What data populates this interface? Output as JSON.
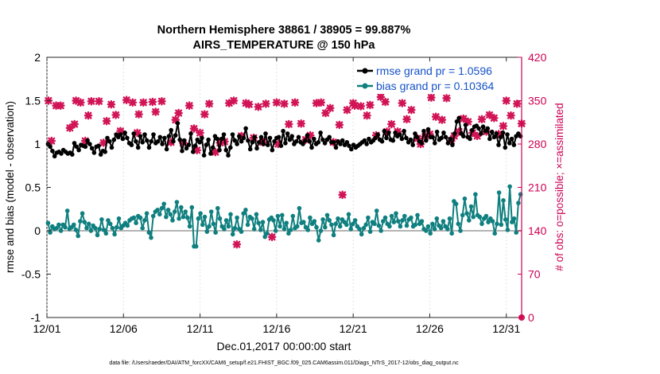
{
  "chart_data": {
    "type": "line",
    "title": [
      "Northern Hemisphere 38861 / 38905 = 99.887%",
      "AIRS_TEMPERATURE @ 150 hPa"
    ],
    "xlabel": "Dec.01,2017 00:00:00 start",
    "ylabel": "rmse and bias (model - observation)",
    "ylabel_right": "# of obs: o=possible; ×=assimilated",
    "footnote": "data file: /Users/raeder/DAI/ATM_forcXX/CAM6_setup/f.e21.FHIST_BGC.f09_025.CAM6assim.011/Diags_NTrS_2017-12/obs_diag_output.nc",
    "xlim": [
      1,
      32
    ],
    "ylim": [
      -1,
      2
    ],
    "ylim_right": [
      0,
      420
    ],
    "x_ticks": [
      1,
      6,
      11,
      16,
      21,
      26,
      31
    ],
    "x_tick_labels": [
      "12/01",
      "12/06",
      "12/11",
      "12/16",
      "12/21",
      "12/26",
      "12/31"
    ],
    "y_ticks": [
      -1,
      -0.5,
      0,
      0.5,
      1,
      1.5,
      2
    ],
    "y_tick_labels": [
      "-1",
      "-0.5",
      "0",
      "0.5",
      "1",
      "1.5",
      "2"
    ],
    "y_right_ticks": [
      0,
      70,
      140,
      210,
      280,
      350,
      420
    ],
    "y_right_tick_labels": [
      "0",
      "70",
      "140",
      "210",
      "280",
      "350",
      "420"
    ],
    "legend": {
      "location": "top-right",
      "entries": [
        "rmse grand pr = 1.0596",
        "bias grand pr = 0.10364"
      ]
    },
    "colors": {
      "rmse": "#000000",
      "bias": "#0f7f7f",
      "obs": "#d11456",
      "zero_line": "#b4b4b4"
    },
    "series": [
      {
        "name": "rmse",
        "values": [
          1.0,
          0.97,
          0.92,
          0.86,
          0.9,
          0.91,
          0.89,
          0.93,
          0.91,
          0.89,
          0.9,
          0.88,
          1.01,
          0.97,
          0.93,
          0.99,
          0.98,
          0.97,
          1.04,
          1.0,
          0.95,
          0.9,
          0.97,
          0.98,
          0.88,
          0.92,
          0.91,
          1.07,
          1.03,
          0.96,
          1.05,
          1.11,
          1.08,
          1.11,
          1.06,
          1.13,
          1.07,
          1.01,
          0.99,
          1.12,
          1.03,
          0.96,
          1.09,
          1.02,
          1.11,
          1.04,
          0.96,
          1.03,
          1.11,
          1.01,
          1.03,
          1.08,
          1.0,
          1.07,
          0.94,
          1.09,
          1.16,
          1.03,
          1.1,
          1.24,
          1.05,
          0.92,
          1.04,
          0.95,
          0.99,
          1.12,
          0.91,
          0.98,
          1.05,
          1.02,
          1.07,
          0.87,
          0.99,
          1.05,
          0.89,
          0.96,
          1.09,
          1.06,
          0.93,
          1.06,
          1.11,
          0.93,
          0.87,
          0.96,
          1.11,
          1.04,
          1.0,
          1.09,
          1.03,
          1.07,
          1.18,
          1.04,
          0.94,
          1.02,
          1.08,
          0.95,
          1.02,
          1.08,
          1.0,
          1.12,
          0.99,
          1.07,
          0.93,
          1.03,
          1.07,
          1.08,
          0.98,
          1.15,
          1.01,
          1.12,
          1.05,
          1.09,
          1.0,
          1.03,
          1.08,
          1.02,
          1.0,
          1.04,
          1.1,
          1.03,
          0.96,
          1.06,
          1.0,
          1.02,
          1.13,
          1.05,
          1.01,
          1.05,
          1.08,
          1.02,
          1.02,
          0.96,
          1.03,
          1.0,
          1.04,
          0.99,
          1.02,
          0.98,
          0.94,
          0.99,
          0.96,
          0.98,
          1.0,
          1.02,
          1.04,
          1.0,
          1.06,
          1.02,
          1.04,
          1.07,
          1.11,
          1.05,
          1.03,
          1.15,
          1.07,
          1.13,
          1.05,
          1.04,
          1.13,
          1.09,
          1.11,
          1.06,
          1.15,
          1.07,
          1.02,
          1.05,
          0.99,
          1.12,
          1.08,
          1.03,
          1.01,
          1.15,
          1.04,
          1.17,
          1.08,
          1.08,
          1.01,
          1.14,
          1.05,
          1.07,
          1.13,
          1.08,
          1.01,
          1.06,
          0.99,
          1.12,
          1.26,
          1.3,
          1.12,
          1.09,
          1.22,
          1.08,
          1.06,
          1.16,
          1.2,
          1.21,
          1.18,
          1.12,
          1.2,
          1.15,
          1.18,
          1.06,
          1.14,
          1.08,
          1.12,
          0.99,
          1.08,
          1.13,
          0.96,
          1.11,
          1.01,
          1.06,
          0.99,
          1.09,
          1.12,
          1.09
        ]
      },
      {
        "name": "bias",
        "values": [
          0.09,
          -0.02,
          0.05,
          0.02,
          0.03,
          0.07,
          0.0,
          0.07,
          0.04,
          0.23,
          0.02,
          0.04,
          0.07,
          0.01,
          -0.06,
          0.11,
          0.2,
          0.1,
          0.03,
          0.08,
          0.0,
          0.06,
          0.03,
          -0.05,
          0.02,
          0.13,
          0.01,
          -0.03,
          0.12,
          0.08,
          0.03,
          -0.04,
          0.04,
          0.14,
          0.03,
          0.06,
          0.09,
          0.06,
          0.12,
          0.14,
          0.15,
          0.09,
          0.17,
          0.15,
          0.03,
          0.12,
          0.2,
          -0.02,
          -0.08,
          0.17,
          0.22,
          0.24,
          0.19,
          0.26,
          0.31,
          0.16,
          0.24,
          0.19,
          0.12,
          0.22,
          0.33,
          0.14,
          0.27,
          0.16,
          0.22,
          0.15,
          0.05,
          0.27,
          -0.18,
          -0.18,
          0.14,
          0.2,
          0.07,
          0.16,
          -0.01,
          0.05,
          0.22,
          0.08,
          -0.02,
          0.26,
          0.14,
          0.05,
          0.02,
          0.12,
          0.05,
          0.19,
          -0.04,
          0.03,
          0.15,
          0.02,
          -0.01,
          0.2,
          0.24,
          0.07,
          0.16,
          0.14,
          0.02,
          0.19,
          0.09,
          0.01,
          0.1,
          -0.07,
          -0.03,
          0.13,
          0.15,
          0.12,
          0.0,
          0.17,
          0.05,
          0.18,
          0.02,
          0.09,
          -0.03,
          0.01,
          0.17,
          0.03,
          0.05,
          0.26,
          0.09,
          0.1,
          0.04,
          0.01,
          0.15,
          0.08,
          0.11,
          0.04,
          -0.11,
          0.0,
          0.13,
          0.04,
          0.18,
          0.12,
          0.07,
          -0.05,
          0.08,
          0.14,
          0.05,
          0.13,
          0.1,
          0.07,
          0.19,
          0.02,
          0.08,
          0.12,
          0.05,
          0.02,
          -0.04,
          0.03,
          0.07,
          0.15,
          -0.01,
          0.1,
          0.08,
          0.23,
          0.06,
          0.0,
          0.11,
          0.15,
          0.08,
          0.05,
          0.17,
          0.1,
          0.2,
          0.11,
          0.05,
          0.12,
          0.17,
          0.06,
          0.13,
          0.15,
          0.05,
          0.07,
          0.18,
          0.08,
          0.11,
          0.02,
          0.0,
          0.05,
          -0.03,
          0.08,
          0.02,
          0.14,
          0.06,
          0.03,
          0.11,
          0.05,
          0.02,
          0.14,
          -0.03,
          0.34,
          0.31,
          0.08,
          0.0,
          0.18,
          0.37,
          0.2,
          0.12,
          0.28,
          0.16,
          0.42,
          0.18,
          0.16,
          0.08,
          0.14,
          0.17,
          0.1,
          0.14,
          0.11,
          -0.03,
          0.08,
          0.44,
          0.07,
          0.35,
          0.13,
          0.01,
          0.51,
          0.1,
          0.14,
          -0.02,
          0.32,
          0.42
        ]
      },
      {
        "name": "obs possible (o)",
        "axis": "right",
        "values": [
          288,
          286,
          348,
          345,
          345,
          332,
          338,
          322,
          346,
          320,
          300,
          298,
          333,
          348,
          335,
          340,
          334,
          332,
          295,
          321,
          350,
          339,
          326,
          330,
          312,
          338,
          322,
          322,
          315,
          330,
          333,
          350,
          349,
          307,
          328,
          340,
          335,
          329,
          334,
          340,
          346,
          333,
          320,
          349,
          345,
          340,
          333,
          348,
          318,
          330,
          330,
          318,
          342,
          350,
          333,
          326,
          320,
          326,
          318,
          345,
          340,
          342,
          336,
          298,
          310,
          345,
          340,
          339,
          315,
          344,
          330,
          325,
          341,
          346,
          335,
          313,
          350,
          323,
          320,
          335,
          314,
          340,
          338,
          336,
          341,
          330,
          345,
          322,
          340,
          340,
          300,
          348,
          336,
          349,
          341,
          320,
          330,
          345,
          336,
          334,
          343,
          326,
          320,
          323,
          318,
          350,
          320,
          339,
          315,
          340,
          347,
          330,
          323,
          335,
          336,
          339,
          320,
          341,
          330,
          349,
          335,
          338,
          340,
          350,
          330,
          318,
          348,
          335,
          355,
          339,
          333,
          336,
          341,
          330,
          347,
          316,
          322,
          330,
          348,
          330,
          345,
          320,
          350,
          326,
          340,
          356,
          332,
          336,
          326,
          340,
          348,
          333,
          318,
          339,
          330,
          349,
          352,
          318,
          340,
          330,
          320,
          338,
          346,
          330,
          322,
          334,
          350,
          340,
          317,
          331,
          349,
          329,
          343,
          345,
          341,
          325,
          330,
          340,
          345,
          337,
          330,
          349,
          355,
          328,
          320,
          338,
          345,
          330,
          319,
          342,
          336,
          317,
          340,
          343,
          350,
          330,
          339,
          328,
          345,
          318,
          333,
          340,
          332,
          310,
          345,
          341,
          330,
          347,
          350,
          316,
          349,
          345,
          338,
          322,
          339,
          346,
          340,
          348,
          323,
          350,
          315
        ]
      },
      {
        "name": "obs assimilated (×)",
        "axis": "right",
        "values": [
          282,
          281,
          345,
          344,
          343,
          329,
          335,
          319,
          343,
          317,
          297,
          295,
          331,
          345,
          332,
          337,
          331,
          329,
          292,
          318,
          347,
          336,
          323,
          327,
          309,
          335,
          319,
          319,
          312,
          327,
          330,
          347,
          346,
          304,
          325,
          337,
          332,
          326,
          331,
          337,
          343,
          330,
          317,
          346,
          342,
          337,
          330,
          345,
          315,
          327,
          327,
          315,
          339,
          347,
          330,
          323,
          317,
          323,
          315,
          342,
          337,
          339,
          333,
          295,
          307,
          342,
          337,
          336,
          312,
          341,
          327,
          322,
          338,
          343,
          332,
          310,
          347,
          320,
          317,
          332,
          311,
          337,
          335,
          333,
          338,
          327,
          342,
          319,
          337,
          337,
          297,
          345,
          333,
          346,
          338,
          317,
          327,
          342,
          333,
          331,
          340,
          323,
          317,
          320,
          315,
          347,
          317,
          336,
          312,
          337,
          344,
          327,
          320,
          332,
          333,
          336,
          317,
          338,
          327,
          346,
          332,
          335,
          337,
          347,
          327,
          315,
          345,
          332,
          352,
          336,
          330,
          333,
          338,
          327,
          344,
          313,
          319,
          327,
          345,
          327,
          342,
          317,
          347,
          323,
          337,
          353,
          329,
          333,
          323,
          337,
          345,
          330,
          315,
          336,
          327,
          346,
          349,
          315,
          337,
          327,
          317,
          335,
          343,
          327,
          319,
          331,
          347,
          337,
          314,
          328,
          346,
          326,
          340,
          342,
          338,
          322,
          327,
          337,
          342,
          334,
          327,
          346,
          352,
          325,
          317,
          335,
          342,
          327,
          316,
          339,
          333,
          314,
          337,
          340,
          347,
          327,
          336,
          325,
          342,
          315,
          330,
          337,
          329,
          307,
          342,
          338,
          327,
          344,
          347,
          313,
          346,
          342,
          335,
          319,
          336,
          343,
          337,
          345,
          320,
          347,
          312
        ]
      }
    ],
    "obs_scatter_points": [
      [
        1.1,
        350
      ],
      [
        1.3,
        285
      ],
      [
        1.6,
        342
      ],
      [
        1.9,
        342
      ],
      [
        2.5,
        306
      ],
      [
        2.8,
        312
      ],
      [
        2.9,
        350
      ],
      [
        3.2,
        347
      ],
      [
        3.5,
        285
      ],
      [
        3.7,
        326
      ],
      [
        3.9,
        349
      ],
      [
        4.4,
        349
      ],
      [
        4.7,
        282
      ],
      [
        4.9,
        317
      ],
      [
        5.2,
        344
      ],
      [
        5.5,
        327
      ],
      [
        5.8,
        301
      ],
      [
        6.2,
        351
      ],
      [
        6.6,
        347
      ],
      [
        6.9,
        298
      ],
      [
        7.0,
        328
      ],
      [
        7.3,
        347
      ],
      [
        7.9,
        348
      ],
      [
        8.1,
        332
      ],
      [
        8.5,
        349
      ],
      [
        9.1,
        283
      ],
      [
        9.4,
        319
      ],
      [
        9.6,
        330
      ],
      [
        9.9,
        282
      ],
      [
        10.3,
        342
      ],
      [
        10.6,
        305
      ],
      [
        10.8,
        270
      ],
      [
        11.0,
        298
      ],
      [
        11.3,
        328
      ],
      [
        11.6,
        345
      ],
      [
        12.0,
        267
      ],
      [
        12.3,
        282
      ],
      [
        12.6,
        284
      ],
      [
        12.9,
        346
      ],
      [
        13.2,
        350
      ],
      [
        13.4,
        118
      ],
      [
        13.7,
        293
      ],
      [
        14.0,
        346
      ],
      [
        14.2,
        344
      ],
      [
        14.5,
        290
      ],
      [
        14.8,
        340
      ],
      [
        15.1,
        283
      ],
      [
        15.3,
        345
      ],
      [
        15.7,
        130
      ],
      [
        16.0,
        347
      ],
      [
        16.1,
        280
      ],
      [
        16.5,
        345
      ],
      [
        16.8,
        312
      ],
      [
        17.2,
        347
      ],
      [
        17.6,
        313
      ],
      [
        17.9,
        287
      ],
      [
        18.2,
        294
      ],
      [
        18.6,
        346
      ],
      [
        18.9,
        347
      ],
      [
        19.2,
        330
      ],
      [
        19.5,
        338
      ],
      [
        19.7,
        283
      ],
      [
        20.1,
        311
      ],
      [
        20.3,
        198
      ],
      [
        20.6,
        335
      ],
      [
        21.0,
        346
      ],
      [
        21.1,
        342
      ],
      [
        21.5,
        341
      ],
      [
        21.9,
        326
      ],
      [
        22.1,
        343
      ],
      [
        22.5,
        294
      ],
      [
        22.8,
        356
      ],
      [
        23.1,
        348
      ],
      [
        23.2,
        300
      ],
      [
        23.5,
        312
      ],
      [
        23.9,
        300
      ],
      [
        24.2,
        346
      ],
      [
        24.5,
        320
      ],
      [
        24.8,
        335
      ],
      [
        25.2,
        289
      ],
      [
        25.4,
        280
      ],
      [
        25.7,
        292
      ],
      [
        26.0,
        296
      ],
      [
        26.1,
        355
      ],
      [
        26.4,
        324
      ],
      [
        26.8,
        319
      ],
      [
        27.1,
        354
      ],
      [
        27.4,
        285
      ],
      [
        27.6,
        293
      ],
      [
        27.9,
        300
      ],
      [
        28.2,
        321
      ],
      [
        28.5,
        316
      ],
      [
        28.8,
        298
      ],
      [
        29.1,
        293
      ],
      [
        29.4,
        320
      ],
      [
        29.7,
        300
      ],
      [
        29.9,
        327
      ],
      [
        30.2,
        322
      ],
      [
        30.5,
        296
      ],
      [
        30.8,
        309
      ],
      [
        31.0,
        350
      ],
      [
        31.3,
        326
      ],
      [
        31.7,
        345
      ],
      [
        32.0,
        313
      ]
    ]
  }
}
